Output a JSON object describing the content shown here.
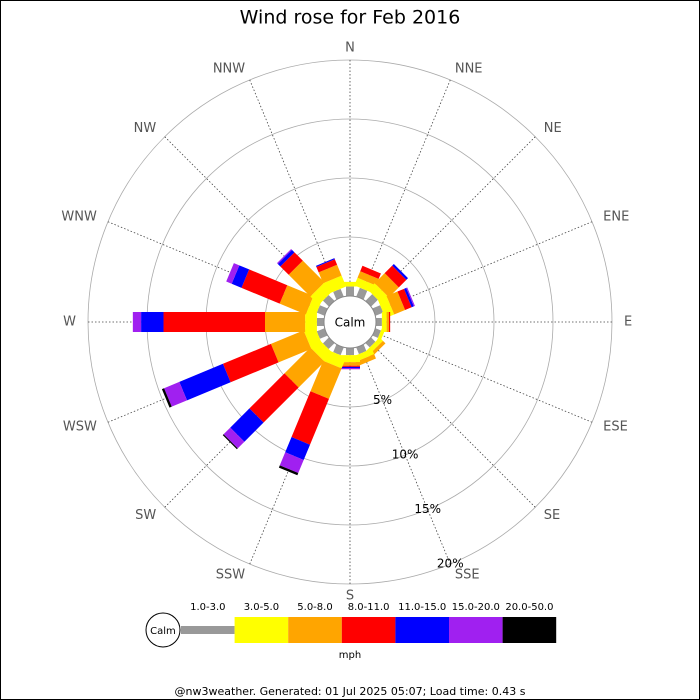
{
  "chart_data": {
    "type": "windrose",
    "title": "Wind rose for Feb 2016",
    "categories": [
      "N",
      "NNE",
      "NE",
      "ENE",
      "E",
      "ESE",
      "SE",
      "SSE",
      "S",
      "SSW",
      "SW",
      "WSW",
      "W",
      "WNW",
      "NW",
      "NNW"
    ],
    "series": [
      {
        "name": "1.0-3.0",
        "color": "#999999",
        "values": [
          0.8,
          0.8,
          0.8,
          0.7,
          0.5,
          0.5,
          0.5,
          0.6,
          0.6,
          0.7,
          0.7,
          0.7,
          0.6,
          0.7,
          0.7,
          0.7
        ]
      },
      {
        "name": "3.0-5.0",
        "color": "#ffff00",
        "values": [
          0.4,
          0.7,
          0.8,
          0.8,
          0.4,
          0.3,
          0.4,
          0.5,
          0.6,
          1.0,
          1.0,
          1.0,
          1.0,
          0.8,
          1.0,
          1.0
        ]
      },
      {
        "name": "5.0-8.0",
        "color": "#ffa500",
        "values": [
          0,
          0.6,
          1.2,
          1.0,
          0.2,
          0,
          0.3,
          0.4,
          0.3,
          2.8,
          3.1,
          3.0,
          3.4,
          2.4,
          2.6,
          1.0
        ]
      },
      {
        "name": "8.0-11.0",
        "color": "#ff0000",
        "values": [
          0,
          0.5,
          0.9,
          0.6,
          0.1,
          0,
          0,
          0,
          0.1,
          4.2,
          4.2,
          4.4,
          8.6,
          3.5,
          1.0,
          0.5
        ]
      },
      {
        "name": "11.0-15.0",
        "color": "#0000ff",
        "values": [
          0,
          0,
          0.2,
          0.2,
          0,
          0,
          0,
          0,
          0.1,
          1.4,
          2.3,
          4.0,
          1.9,
          0.9,
          0.3,
          0.1
        ]
      },
      {
        "name": "15.0-20.0",
        "color": "#a020f0",
        "values": [
          0,
          0,
          0,
          0.1,
          0,
          0,
          0,
          0,
          0.1,
          1.2,
          0.8,
          1.4,
          0.7,
          0.5,
          0.1,
          0
        ]
      },
      {
        "name": "20.0-50.0",
        "color": "#000000",
        "values": [
          0,
          0,
          0,
          0,
          0,
          0,
          0,
          0,
          0,
          0.2,
          0.1,
          0.2,
          0,
          0,
          0,
          0
        ]
      }
    ],
    "rlim": [
      0,
      20
    ],
    "rticks": [
      {
        "value": 5,
        "label": "5%"
      },
      {
        "value": 10,
        "label": "10%"
      },
      {
        "value": 15,
        "label": "15%"
      },
      {
        "value": 20,
        "label": "20%"
      }
    ],
    "calm_label": "Calm",
    "units": "mph"
  },
  "footer": "@nw3weather. Generated: 01 Jul 2025 05:07; Load time: 0.43 s"
}
